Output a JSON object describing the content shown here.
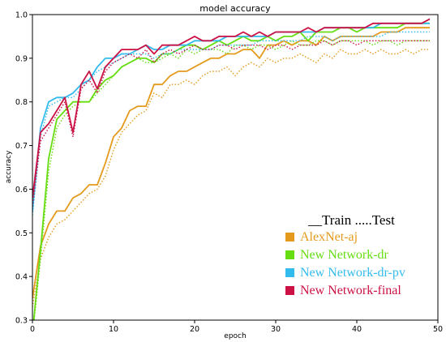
{
  "chart_data": {
    "type": "line",
    "title": "model accuracy",
    "xlabel": "epoch",
    "ylabel": "accuracy",
    "xlim": [
      0,
      50
    ],
    "ylim": [
      0.3,
      1.0
    ],
    "xticks": [
      "0",
      "10",
      "20",
      "30",
      "40",
      "50"
    ],
    "yticks": [
      "0.3",
      "0.4",
      "0.5",
      "0.6",
      "0.7",
      "0.8",
      "0.9",
      "1.0"
    ],
    "grid": false,
    "legend": {
      "placement": "lower-right",
      "header": "__Train  .....Test"
    },
    "x": [
      0,
      1,
      2,
      3,
      4,
      5,
      6,
      7,
      8,
      9,
      10,
      11,
      12,
      13,
      14,
      15,
      16,
      17,
      18,
      19,
      20,
      21,
      22,
      23,
      24,
      25,
      26,
      27,
      28,
      29,
      30,
      31,
      32,
      33,
      34,
      35,
      36,
      37,
      38,
      39,
      40,
      41,
      42,
      43,
      44,
      45,
      46,
      47,
      48,
      49
    ],
    "series": [
      {
        "name": "AlexNet-aj",
        "color": "#e49a1c",
        "train": [
          0.35,
          0.47,
          0.52,
          0.55,
          0.55,
          0.58,
          0.59,
          0.61,
          0.61,
          0.66,
          0.72,
          0.74,
          0.78,
          0.79,
          0.79,
          0.84,
          0.84,
          0.86,
          0.87,
          0.87,
          0.88,
          0.89,
          0.9,
          0.9,
          0.91,
          0.91,
          0.92,
          0.92,
          0.9,
          0.93,
          0.93,
          0.94,
          0.93,
          0.94,
          0.94,
          0.93,
          0.95,
          0.94,
          0.95,
          0.95,
          0.95,
          0.95,
          0.95,
          0.96,
          0.96,
          0.96,
          0.97,
          0.97,
          0.97,
          0.97
        ],
        "test": [
          0.33,
          0.44,
          0.49,
          0.52,
          0.53,
          0.55,
          0.57,
          0.59,
          0.6,
          0.63,
          0.69,
          0.73,
          0.75,
          0.77,
          0.78,
          0.82,
          0.81,
          0.84,
          0.84,
          0.85,
          0.84,
          0.86,
          0.87,
          0.87,
          0.88,
          0.86,
          0.88,
          0.89,
          0.88,
          0.9,
          0.89,
          0.9,
          0.9,
          0.91,
          0.9,
          0.89,
          0.91,
          0.9,
          0.92,
          0.91,
          0.91,
          0.92,
          0.91,
          0.92,
          0.91,
          0.91,
          0.92,
          0.91,
          0.92,
          0.92
        ]
      },
      {
        "name": "New Network-dr",
        "color": "#66dd11",
        "train": [
          0.27,
          0.46,
          0.67,
          0.76,
          0.78,
          0.8,
          0.8,
          0.8,
          0.83,
          0.85,
          0.86,
          0.88,
          0.89,
          0.9,
          0.9,
          0.89,
          0.91,
          0.91,
          0.92,
          0.93,
          0.93,
          0.92,
          0.93,
          0.94,
          0.93,
          0.94,
          0.95,
          0.94,
          0.94,
          0.95,
          0.94,
          0.95,
          0.95,
          0.96,
          0.94,
          0.96,
          0.96,
          0.96,
          0.97,
          0.97,
          0.96,
          0.97,
          0.97,
          0.97,
          0.97,
          0.97,
          0.98,
          0.98,
          0.98,
          0.98
        ],
        "test": [
          0.26,
          0.44,
          0.64,
          0.74,
          0.77,
          0.79,
          0.8,
          0.8,
          0.82,
          0.84,
          0.86,
          0.88,
          0.89,
          0.9,
          0.89,
          0.89,
          0.9,
          0.91,
          0.9,
          0.92,
          0.91,
          0.92,
          0.92,
          0.92,
          0.91,
          0.93,
          0.93,
          0.92,
          0.93,
          0.93,
          0.92,
          0.93,
          0.94,
          0.93,
          0.93,
          0.94,
          0.94,
          0.93,
          0.94,
          0.94,
          0.94,
          0.94,
          0.93,
          0.94,
          0.94,
          0.93,
          0.94,
          0.94,
          0.94,
          0.94
        ]
      },
      {
        "name": "New Network-dr-pv",
        "color": "#33bbee",
        "train": [
          0.55,
          0.74,
          0.8,
          0.81,
          0.81,
          0.82,
          0.84,
          0.85,
          0.88,
          0.9,
          0.9,
          0.91,
          0.91,
          0.92,
          0.93,
          0.92,
          0.92,
          0.93,
          0.93,
          0.93,
          0.94,
          0.94,
          0.94,
          0.94,
          0.95,
          0.95,
          0.95,
          0.95,
          0.95,
          0.95,
          0.96,
          0.96,
          0.96,
          0.96,
          0.96,
          0.96,
          0.97,
          0.97,
          0.97,
          0.97,
          0.97,
          0.97,
          0.97,
          0.98,
          0.98,
          0.98,
          0.98,
          0.98,
          0.98,
          0.98
        ],
        "test": [
          0.54,
          0.72,
          0.79,
          0.8,
          0.81,
          0.81,
          0.83,
          0.85,
          0.87,
          0.88,
          0.89,
          0.9,
          0.91,
          0.91,
          0.91,
          0.9,
          0.91,
          0.91,
          0.92,
          0.92,
          0.92,
          0.92,
          0.92,
          0.93,
          0.93,
          0.93,
          0.93,
          0.93,
          0.94,
          0.94,
          0.94,
          0.94,
          0.94,
          0.94,
          0.95,
          0.95,
          0.95,
          0.94,
          0.95,
          0.95,
          0.95,
          0.95,
          0.95,
          0.95,
          0.96,
          0.96,
          0.96,
          0.96,
          0.96,
          0.96
        ]
      },
      {
        "name": "New Network-final",
        "color": "#cc1144",
        "train": [
          0.58,
          0.73,
          0.75,
          0.78,
          0.81,
          0.73,
          0.84,
          0.87,
          0.83,
          0.88,
          0.9,
          0.92,
          0.92,
          0.92,
          0.93,
          0.91,
          0.93,
          0.93,
          0.93,
          0.94,
          0.95,
          0.94,
          0.94,
          0.95,
          0.95,
          0.95,
          0.96,
          0.95,
          0.96,
          0.95,
          0.96,
          0.96,
          0.96,
          0.96,
          0.97,
          0.96,
          0.97,
          0.97,
          0.97,
          0.97,
          0.97,
          0.97,
          0.98,
          0.98,
          0.98,
          0.98,
          0.98,
          0.98,
          0.98,
          0.99
        ],
        "test": [
          0.56,
          0.71,
          0.74,
          0.77,
          0.8,
          0.72,
          0.83,
          0.85,
          0.82,
          0.87,
          0.89,
          0.9,
          0.91,
          0.9,
          0.92,
          0.89,
          0.91,
          0.92,
          0.91,
          0.92,
          0.93,
          0.92,
          0.92,
          0.93,
          0.93,
          0.92,
          0.93,
          0.93,
          0.93,
          0.92,
          0.93,
          0.93,
          0.92,
          0.93,
          0.93,
          0.93,
          0.94,
          0.93,
          0.94,
          0.94,
          0.93,
          0.94,
          0.94,
          0.94,
          0.94,
          0.94,
          0.94,
          0.94,
          0.94,
          0.94
        ]
      }
    ]
  }
}
